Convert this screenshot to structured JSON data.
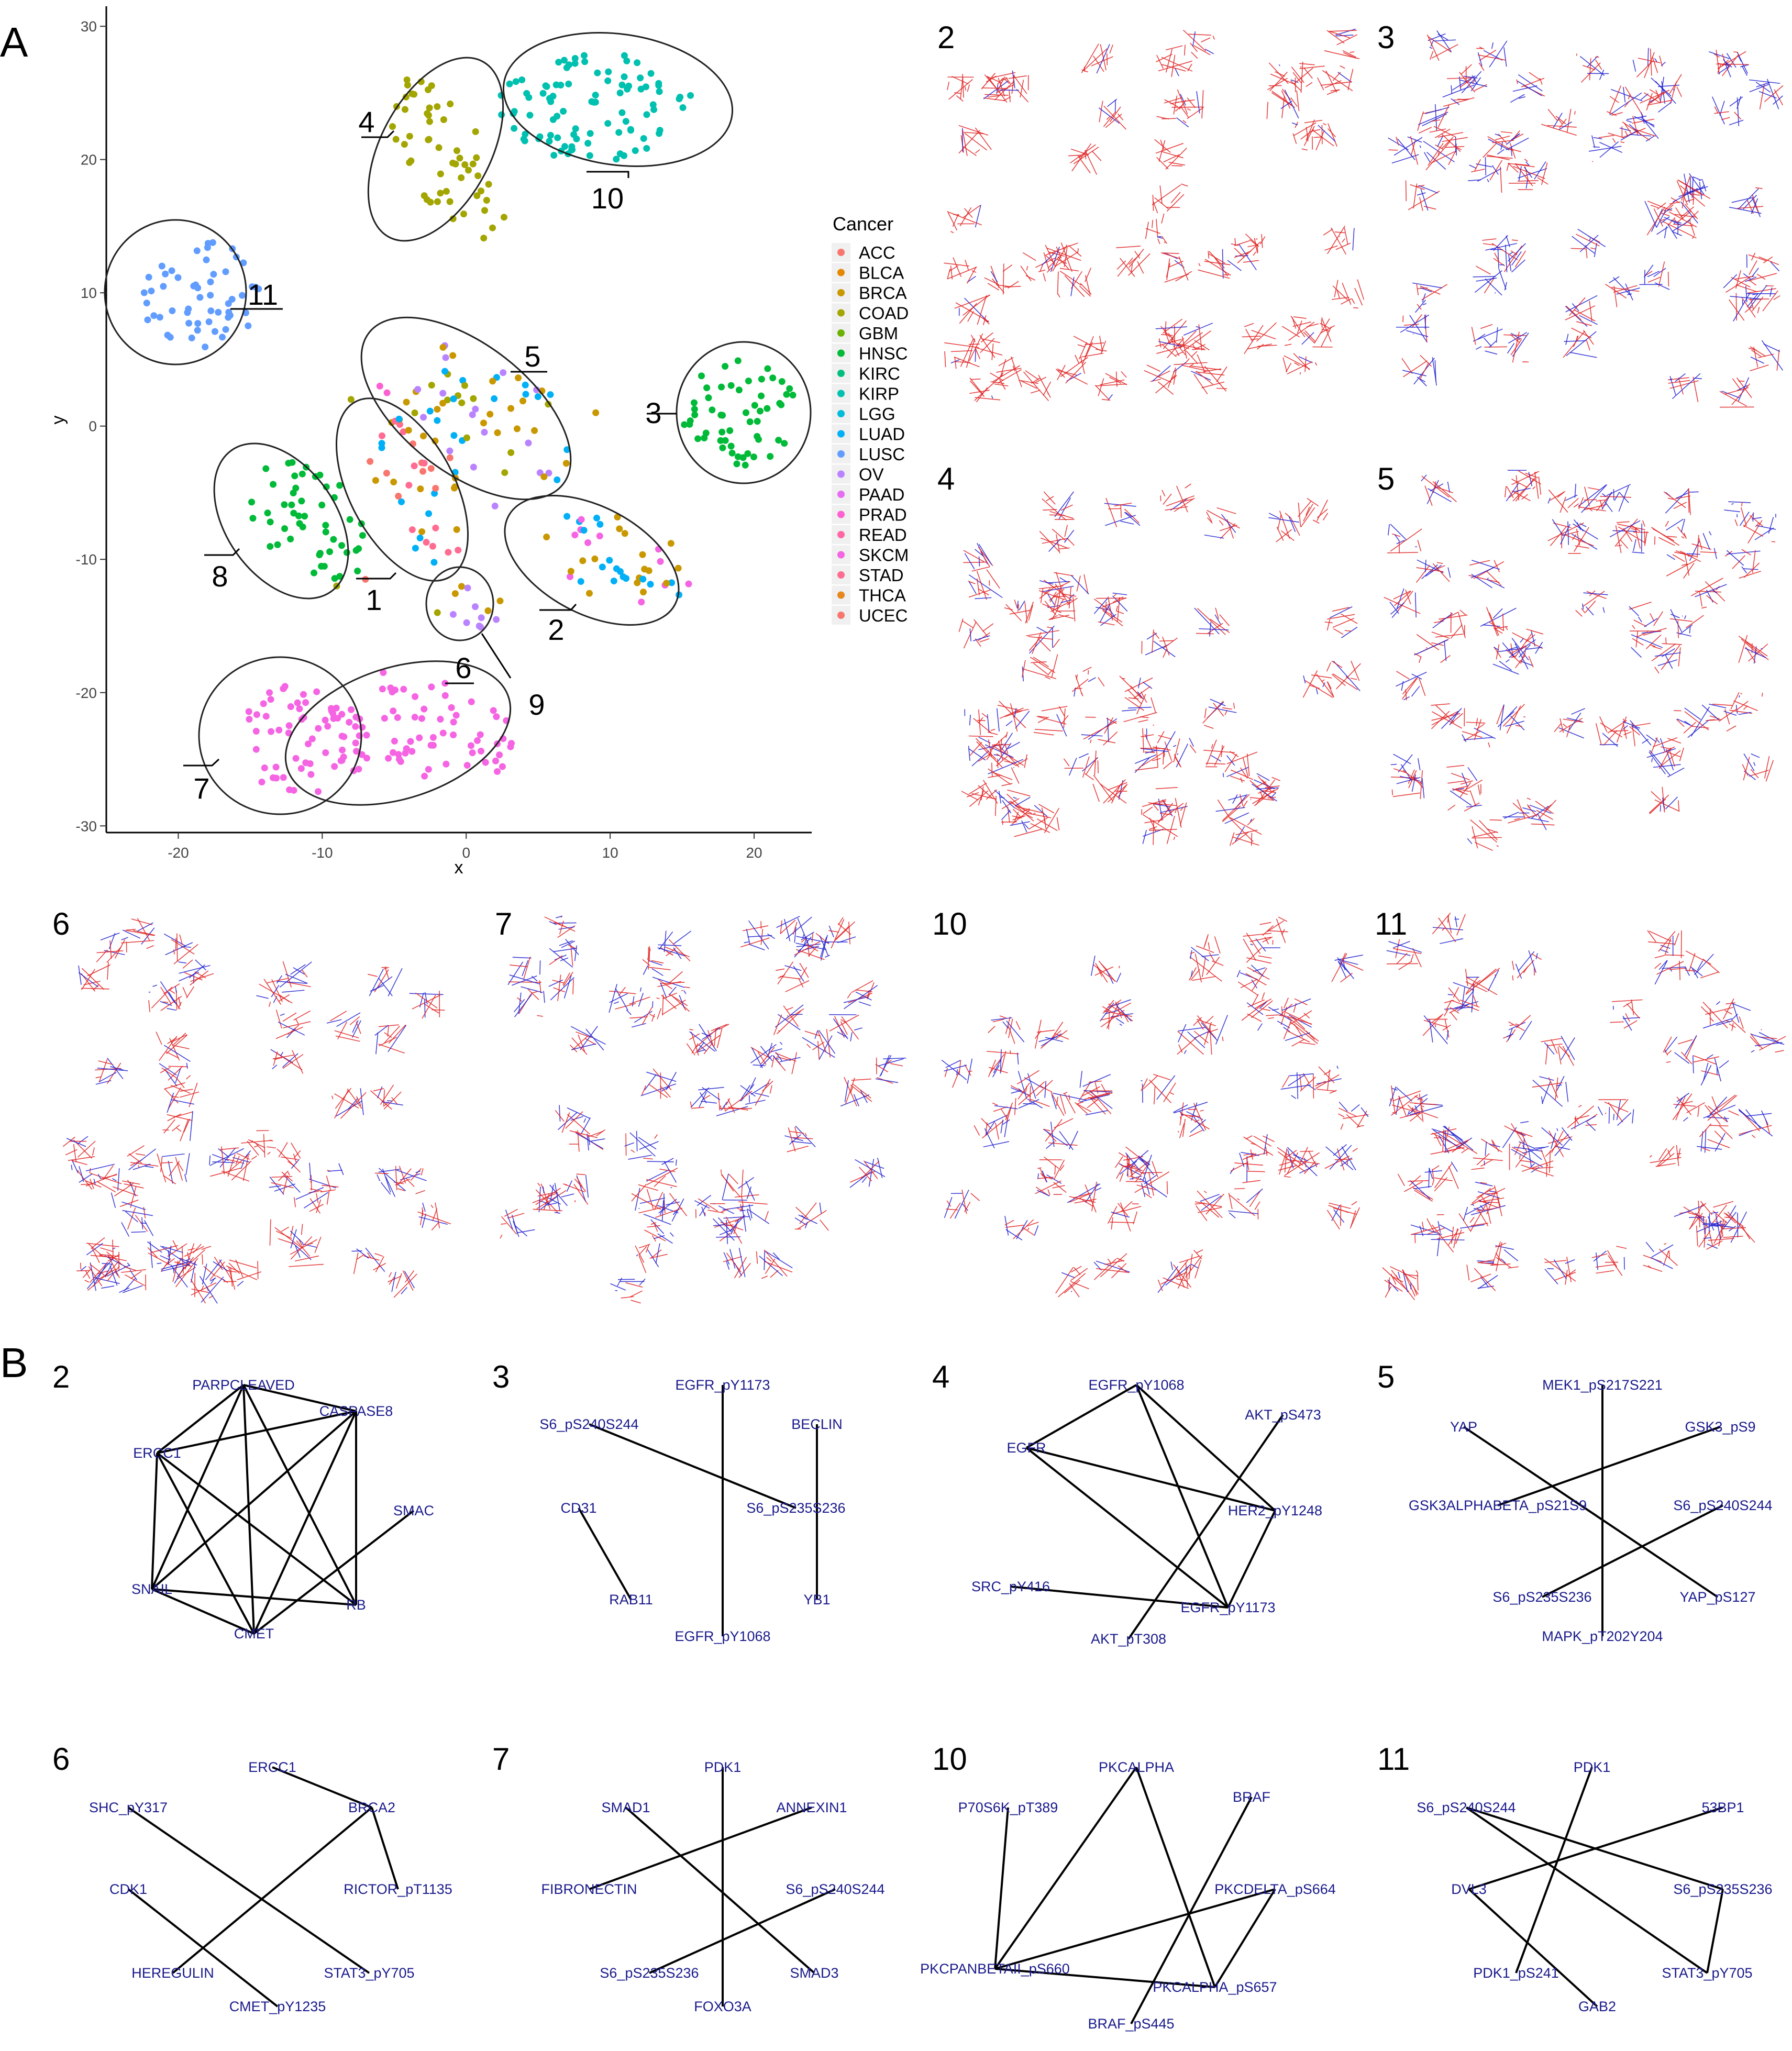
{
  "panel_labels": {
    "A": "A",
    "B": "B"
  },
  "colors": {
    "ACC": "#f8766d",
    "BLCA": "#e58700",
    "BRCA": "#c99800",
    "COAD": "#a3a500",
    "GBM": "#6bb100",
    "HNSC": "#00ba38",
    "KIRC": "#00bf7d",
    "KIRP": "#00c0af",
    "LGG": "#00bcd8",
    "LUAD": "#00b0f6",
    "LUSC": "#619cff",
    "OV": "#b983ff",
    "PAAD": "#e76bf3",
    "PRAD": "#fd61d1",
    "READ": "#ff67a4",
    "SKCM": "#f564e3",
    "STAD": "#ff6c91",
    "THCA": "#e7861b",
    "UCEC": "#f8766d",
    "edge_red": "#e02020",
    "edge_blue": "#2020d0",
    "node_text": "#1a1a8c"
  },
  "chart_data": {
    "type": "scatter",
    "xlabel": "x",
    "ylabel": "y",
    "xlim": [
      -25,
      24
    ],
    "ylim": [
      -30.5,
      31.5
    ],
    "x_ticks": [
      "-20",
      "-10",
      "0",
      "10",
      "20"
    ],
    "y_ticks": [
      "30",
      "20",
      "10",
      "0",
      "-10",
      "-20",
      "-30"
    ],
    "legend_title": "Cancer",
    "legend_position": "right",
    "legend_entries": [
      "ACC",
      "BLCA",
      "BRCA",
      "COAD",
      "GBM",
      "HNSC",
      "KIRC",
      "KIRP",
      "LGG",
      "LUAD",
      "LUSC",
      "OV",
      "PAAD",
      "PRAD",
      "READ",
      "SKCM",
      "STAD",
      "THCA",
      "UCEC"
    ],
    "cluster_labels": [
      "1",
      "2",
      "3",
      "4",
      "5",
      "6",
      "7",
      "8",
      "9",
      "10",
      "11"
    ],
    "clusters": [
      {
        "label": "10",
        "cx": 9,
        "cy": 24,
        "rx": 8,
        "ry": 4.8,
        "n": 95,
        "colors": [
          "KIRP"
        ]
      },
      {
        "label": "4",
        "cx": -1.2,
        "cy": 20,
        "rx": 8,
        "ry": 3.4,
        "angle": -62,
        "n": 55,
        "colors": [
          "COAD"
        ]
      },
      {
        "label": "11",
        "cx": -18.5,
        "cy": 10,
        "rx": 5,
        "ry": 4.8,
        "n": 55,
        "colors": [
          "LUSC"
        ]
      },
      {
        "label": "3",
        "cx": 19,
        "cy": 1,
        "rx": 4.8,
        "ry": 4.8,
        "n": 55,
        "colors": [
          "HNSC"
        ]
      },
      {
        "label": "5",
        "cx": 1.5,
        "cy": 1,
        "rx": 8.5,
        "ry": 4.8,
        "angle": -38,
        "n": 60,
        "colors": [
          "BRCA",
          "COAD",
          "LUAD",
          "OV"
        ]
      },
      {
        "label": "1",
        "cx": -3,
        "cy": -5,
        "rx": 7.5,
        "ry": 3.6,
        "angle": -62,
        "n": 45,
        "colors": [
          "BRCA",
          "LUAD",
          "STAD",
          "ACC"
        ]
      },
      {
        "label": "8",
        "cx": -11,
        "cy": -7,
        "rx": 6.5,
        "ry": 4,
        "angle": -50,
        "n": 50,
        "colors": [
          "HNSC"
        ]
      },
      {
        "label": "2",
        "cx": 10.5,
        "cy": -10,
        "rx": 6.5,
        "ry": 3.8,
        "angle": -28,
        "n": 45,
        "colors": [
          "LUAD",
          "SKCM",
          "BRCA"
        ]
      },
      {
        "label": "9",
        "cx": 0.8,
        "cy": -13.3,
        "rx": 2.2,
        "ry": 2.4,
        "n": 12,
        "colors": [
          "BRCA",
          "OV"
        ]
      },
      {
        "label": "7",
        "cx": -11,
        "cy": -23.5,
        "rx": 5.5,
        "ry": 5.2,
        "n": 65,
        "colors": [
          "SKCM"
        ]
      },
      {
        "label": "6",
        "cx": -3,
        "cy": -22.5,
        "rx": 8,
        "ry": 4.4,
        "angle": -18,
        "n": 65,
        "colors": [
          "SKCM"
        ]
      }
    ]
  },
  "network_panels": [
    {
      "label": "2",
      "nodes": [
        "PARPCLEAVED",
        "CASPASE8",
        "ERCC1",
        "SMAC",
        "SNAIL",
        "RB",
        "CMET"
      ]
    },
    {
      "label": "3",
      "nodes": [
        "EGFR_pY1173",
        "S6_pS240S244",
        "BECLIN",
        "CD31",
        "S6_pS235S236",
        "RAB11",
        "YB1",
        "EGFR_pY1068"
      ]
    },
    {
      "label": "4",
      "nodes": [
        "EGFR_pY1068",
        "AKT_pS473",
        "EGFR",
        "HER2_pY1248",
        "SRC_pY416",
        "EGFR_pY1173",
        "AKT_pT308"
      ]
    },
    {
      "label": "5",
      "nodes": [
        "MEK1_pS217S221",
        "YAP",
        "GSK3_pS9",
        "GSK3ALPHABETA_pS21S9",
        "S6_pS240S244",
        "S6_pS235S236",
        "YAP_pS127",
        "MAPK_pT202Y204"
      ]
    },
    {
      "label": "6",
      "nodes": [
        "ERCC1",
        "SHC_pY317",
        "BRCA2",
        "CDK1",
        "RICTOR_pT1135",
        "HEREGULIN",
        "STAT3_pY705",
        "CMET_pY1235"
      ]
    },
    {
      "label": "7",
      "nodes": [
        "PDK1",
        "SMAD1",
        "ANNEXIN1",
        "FIBRONECTIN",
        "S6_pS240S244",
        "S6_pS235S236",
        "SMAD3",
        "FOXO3A"
      ]
    },
    {
      "label": "10",
      "nodes": [
        "PKCALPHA",
        "BRAF",
        "P70S6K_pT389",
        "PKCDELTA_pS664",
        "PKCPANBETAII_pS660",
        "PKCALPHA_pS657",
        "BRAF_pS445"
      ]
    },
    {
      "label": "11",
      "nodes": [
        "PDK1",
        "S6_pS240S244",
        "53BP1",
        "DVL3",
        "S6_pS235S236",
        "PDK1_pS241",
        "STAT3_pY705",
        "GAB2"
      ]
    }
  ],
  "glyph_panels": [
    "2",
    "3",
    "4",
    "5",
    "6",
    "7",
    "10",
    "11"
  ]
}
